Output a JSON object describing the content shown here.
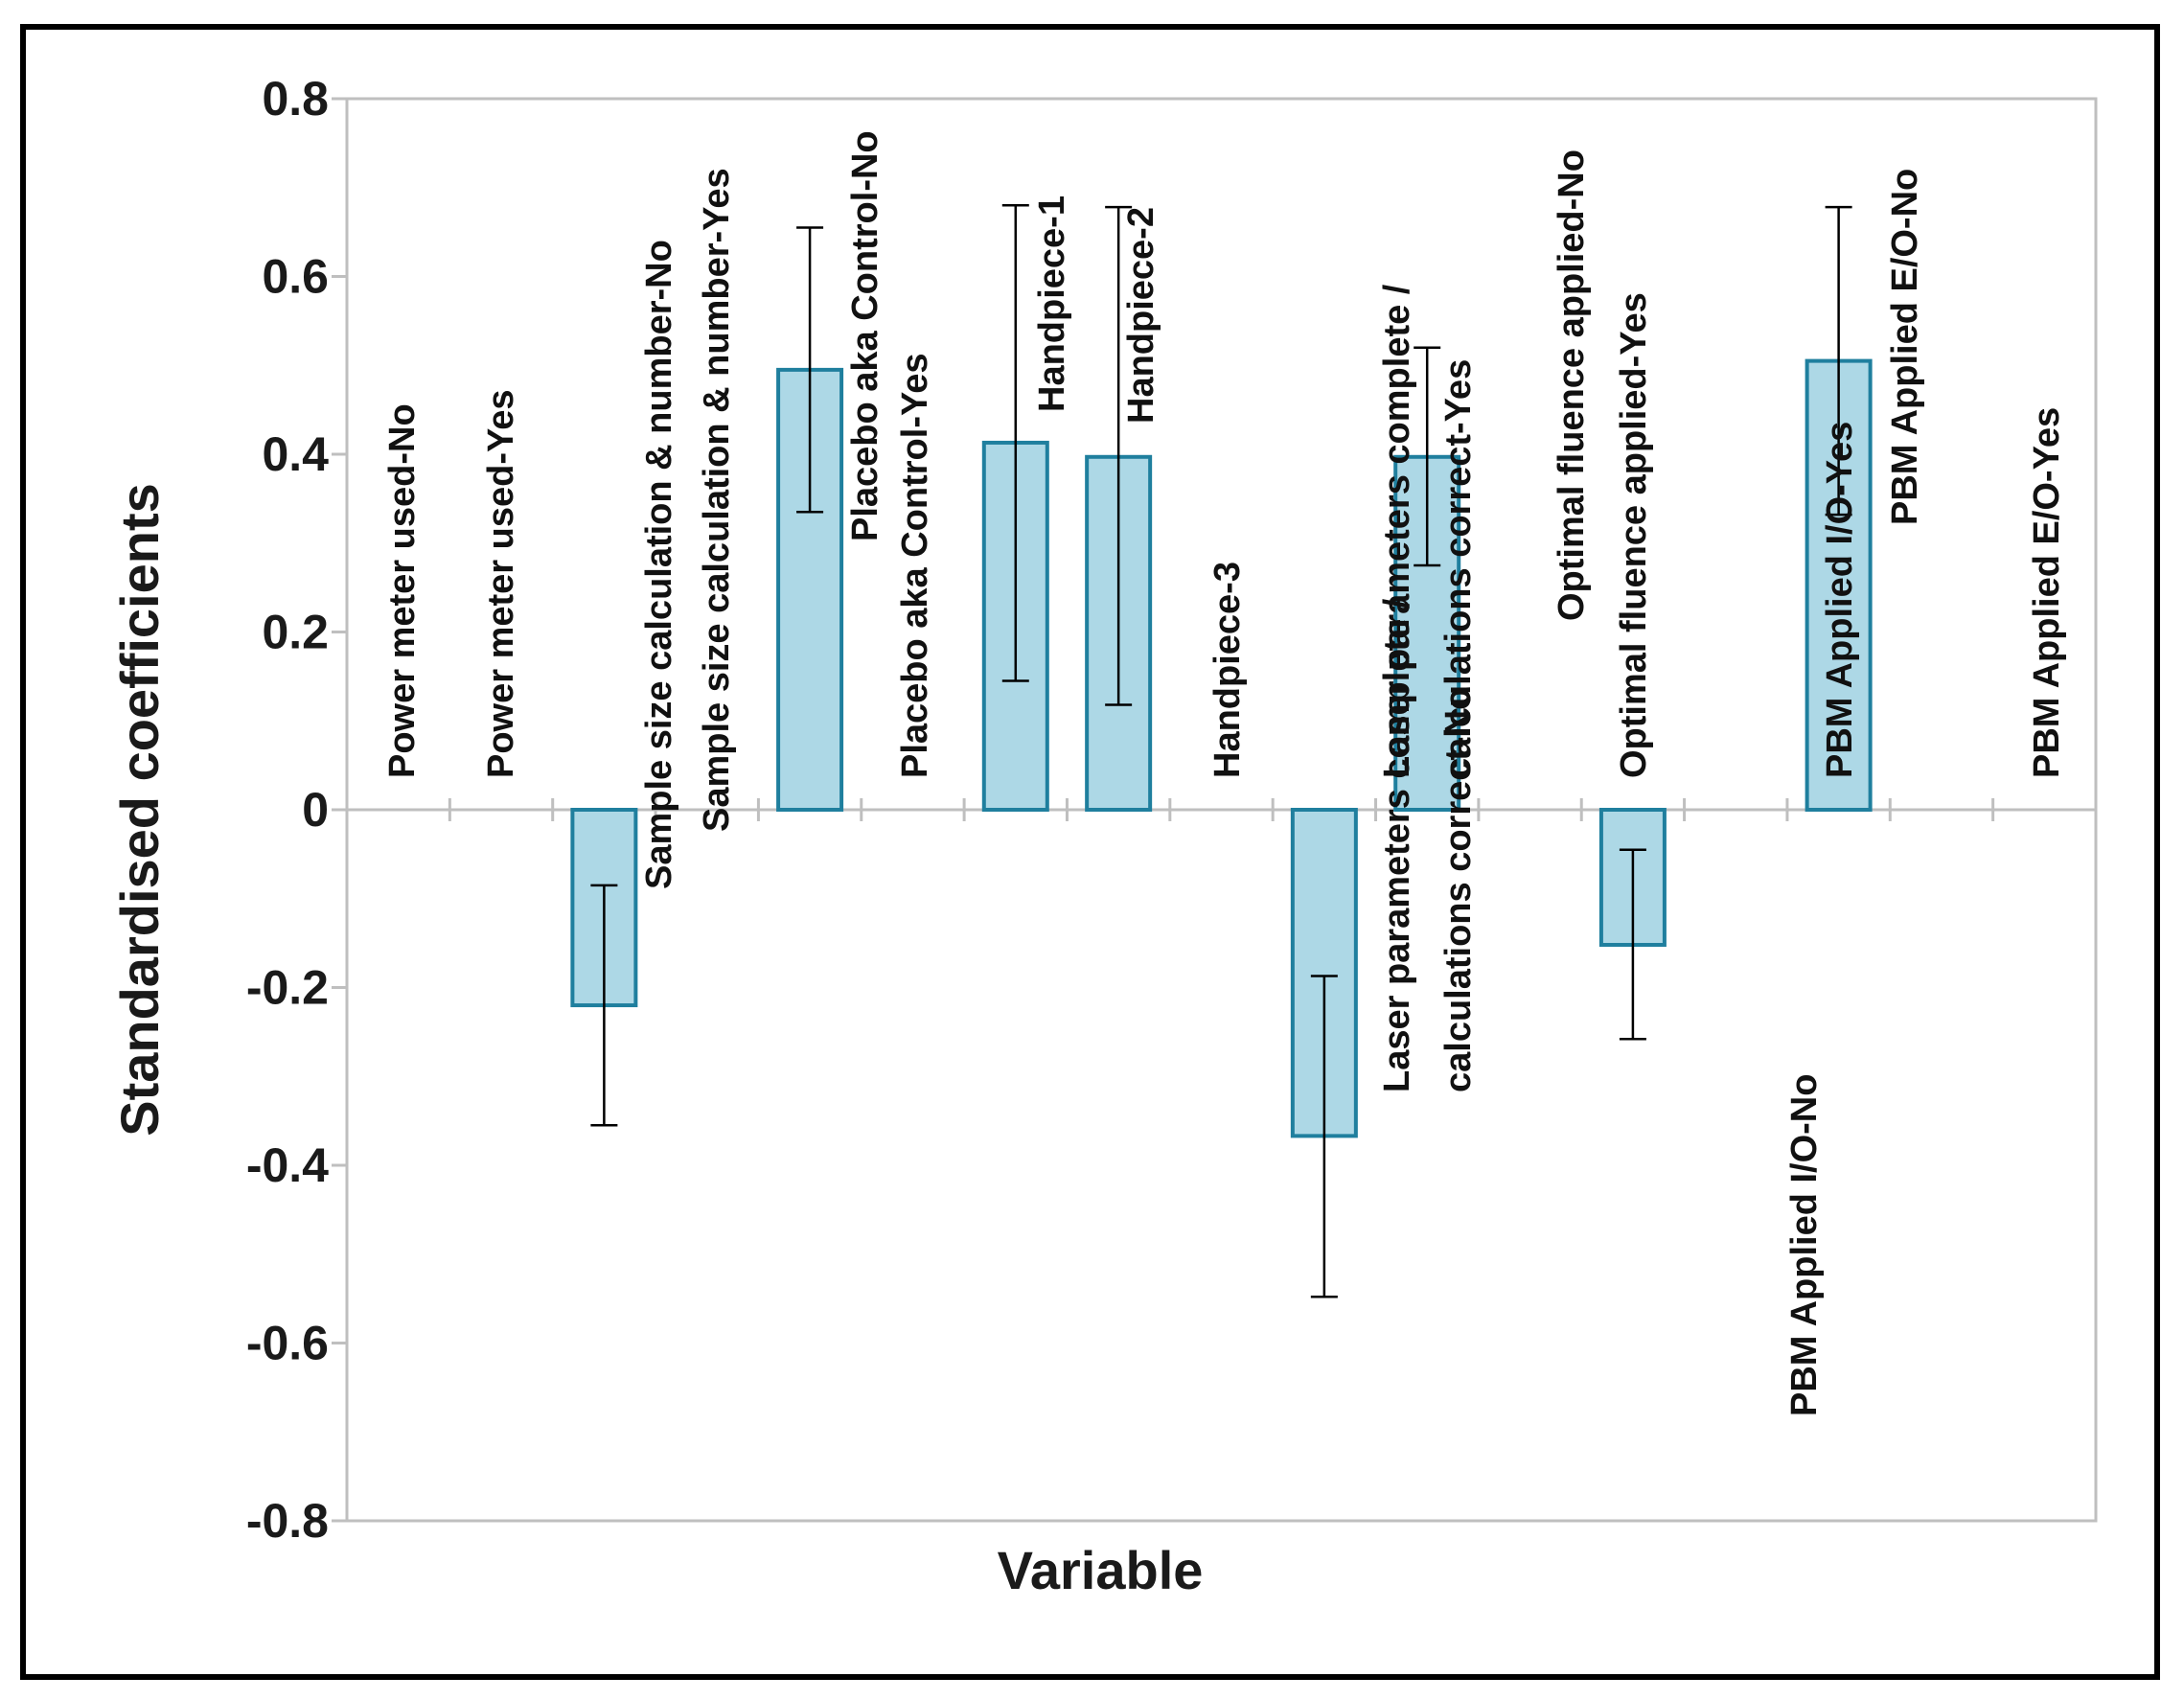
{
  "chart_data": {
    "type": "bar",
    "title": "",
    "xlabel": "Variable",
    "ylabel": "Standardised coefficients",
    "ylim": [
      -0.8,
      0.8
    ],
    "yticks": [
      0.8,
      0.6,
      0.4,
      0.2,
      0,
      -0.2,
      -0.4,
      -0.6,
      -0.8
    ],
    "ytick_labels": [
      "0.8",
      "0.6",
      "0.4",
      "0.2",
      "0",
      "-0.2",
      "-0.4",
      "-0.6",
      "-0.8"
    ],
    "grid": false,
    "legend": "none",
    "categories": [
      "Power meter used-No",
      "Power meter used-Yes",
      "Sample size calculation & number-No",
      "Sample size calculation & number-Yes",
      "Placebo aka Control-No",
      "Placebo aka Control-Yes",
      "Handpiece-1",
      "Handpiece-2",
      "Handpiece-3",
      "Laser parameters complete / calculations correct-No",
      "Laser parameters complete / calculations correct-Yes",
      "Optimal fluence applied-No",
      "Optimal fluence applied-Yes",
      "PBM Applied I/O-No",
      "PBM Applied I/O-Yes",
      "PBM Applied  E/O-No",
      "PBM Applied  E/O-Yes"
    ],
    "values": [
      0,
      0,
      -0.22,
      0,
      0.495,
      0,
      0.413,
      0.397,
      0,
      -0.367,
      0.397,
      0,
      -0.152,
      0,
      0.505,
      0,
      0
    ],
    "error_low": [
      null,
      null,
      -0.355,
      null,
      0.335,
      null,
      0.145,
      0.118,
      null,
      -0.548,
      0.275,
      null,
      -0.258,
      null,
      0.332,
      null,
      null
    ],
    "error_high": [
      null,
      null,
      -0.085,
      null,
      0.655,
      null,
      0.68,
      0.678,
      null,
      -0.187,
      0.52,
      null,
      -0.045,
      null,
      0.678,
      null,
      null
    ],
    "bar_color": "#add8e6",
    "bar_edge_color": "#1f7f9e",
    "frame_color": "#bfbfbf"
  }
}
